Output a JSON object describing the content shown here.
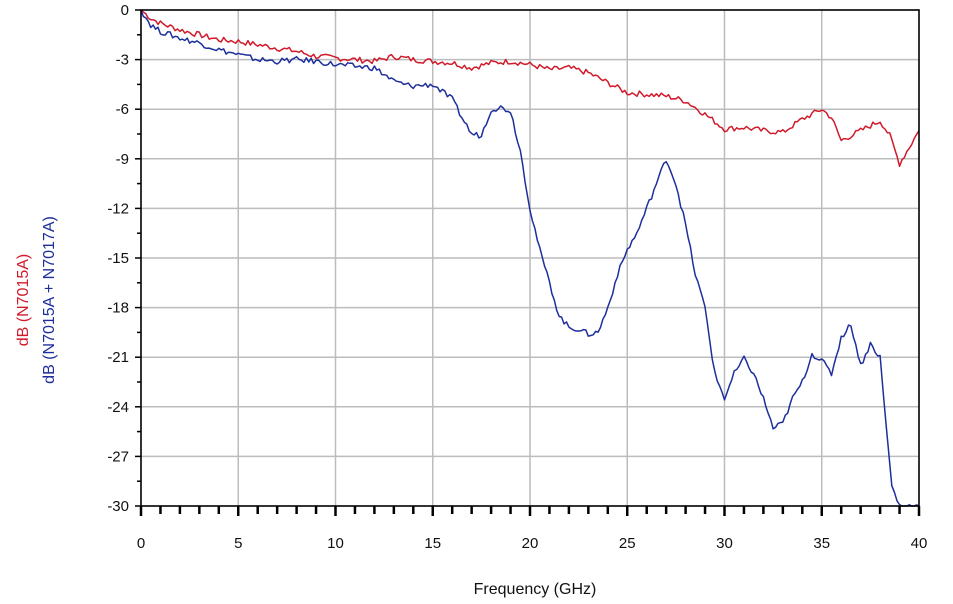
{
  "chart_data": {
    "type": "line",
    "title": "",
    "xlabel": "Frequency (GHz)",
    "ylabel_red": "dB (N7015A)",
    "ylabel_blue": "dB (N7015A + N7017A)",
    "xlim": [
      0,
      40
    ],
    "ylim": [
      -30,
      0
    ],
    "x_ticks": [
      0,
      5,
      10,
      15,
      20,
      25,
      30,
      35,
      40
    ],
    "x_tick_labels": [
      "0",
      "5",
      "10",
      "15",
      "20",
      "25",
      "30",
      "35",
      "40"
    ],
    "y_ticks": [
      0,
      -3,
      -6,
      -9,
      -12,
      -15,
      -18,
      -21,
      -24,
      -27,
      -30
    ],
    "y_tick_labels": [
      "0",
      "-3",
      "-6",
      "-9",
      "-12",
      "-15",
      "-18",
      "-21",
      "-24",
      "-27",
      "-30"
    ],
    "grid": true,
    "colors": {
      "red": "#d11a2a",
      "blue": "#1d2f9c",
      "grid": "#bcbcbc",
      "axis": "#000000"
    },
    "series": [
      {
        "color": "red",
        "x": [
          0,
          0.5,
          1,
          2,
          3,
          4,
          5,
          6,
          7,
          8,
          9,
          10,
          11,
          12,
          13,
          14,
          15,
          16,
          17,
          18,
          19,
          20,
          21,
          22,
          23,
          24,
          25,
          26,
          27,
          28,
          29,
          30,
          31,
          32,
          33,
          34,
          35,
          35.5,
          36,
          37,
          38,
          38.5,
          39,
          39.5,
          40
        ],
        "y": [
          0,
          -0.5,
          -0.8,
          -1.2,
          -1.5,
          -1.8,
          -1.9,
          -2.1,
          -2.3,
          -2.5,
          -2.8,
          -2.9,
          -3.0,
          -3.1,
          -2.8,
          -3.0,
          -3.1,
          -3.2,
          -3.5,
          -3.2,
          -3.1,
          -3.3,
          -3.6,
          -3.5,
          -3.8,
          -4.4,
          -5.0,
          -5.1,
          -5.2,
          -5.5,
          -6.3,
          -7.2,
          -7.1,
          -7.3,
          -7.4,
          -6.6,
          -6.0,
          -6.5,
          -7.9,
          -7.3,
          -6.7,
          -7.6,
          -9.3,
          -8.3,
          -7.3
        ]
      },
      {
        "color": "blue",
        "x": [
          0,
          0.5,
          1,
          2,
          3,
          4,
          5,
          6,
          7,
          8,
          9,
          10,
          11,
          12,
          13,
          13.5,
          14,
          15,
          16,
          16.5,
          17,
          17.5,
          18,
          18.5,
          19,
          19.5,
          20,
          20.5,
          21,
          21.5,
          22,
          22.5,
          23,
          23.5,
          24,
          24.5,
          25,
          25.5,
          26,
          26.5,
          27,
          27.5,
          28,
          28.5,
          29,
          29.5,
          30,
          30.5,
          31,
          31.5,
          32,
          32.5,
          33,
          33.5,
          34,
          34.5,
          35,
          35.5,
          36,
          36.5,
          37,
          37.5,
          38,
          38.3,
          38.6,
          39,
          40
        ],
        "y": [
          0,
          -0.9,
          -1.3,
          -1.7,
          -2.0,
          -2.4,
          -2.7,
          -3.0,
          -3.1,
          -3.0,
          -3.1,
          -3.3,
          -3.4,
          -3.5,
          -4.3,
          -4.5,
          -4.6,
          -4.5,
          -5.4,
          -6.5,
          -7.5,
          -7.6,
          -6.0,
          -5.9,
          -6.1,
          -8.5,
          -12.0,
          -14.5,
          -16.5,
          -18.5,
          -19.2,
          -19.3,
          -19.6,
          -19.5,
          -18.0,
          -16.0,
          -14.5,
          -13.5,
          -12.0,
          -10.5,
          -9.0,
          -10.5,
          -13.0,
          -16.0,
          -18.0,
          -22.0,
          -23.5,
          -22.0,
          -21.1,
          -22.0,
          -23.5,
          -25.3,
          -25.0,
          -23.5,
          -22.5,
          -20.8,
          -21.2,
          -22.0,
          -19.8,
          -19.0,
          -21.5,
          -20.2,
          -21.0,
          -25.0,
          -28.8,
          -30.0,
          -30.0
        ]
      }
    ]
  }
}
